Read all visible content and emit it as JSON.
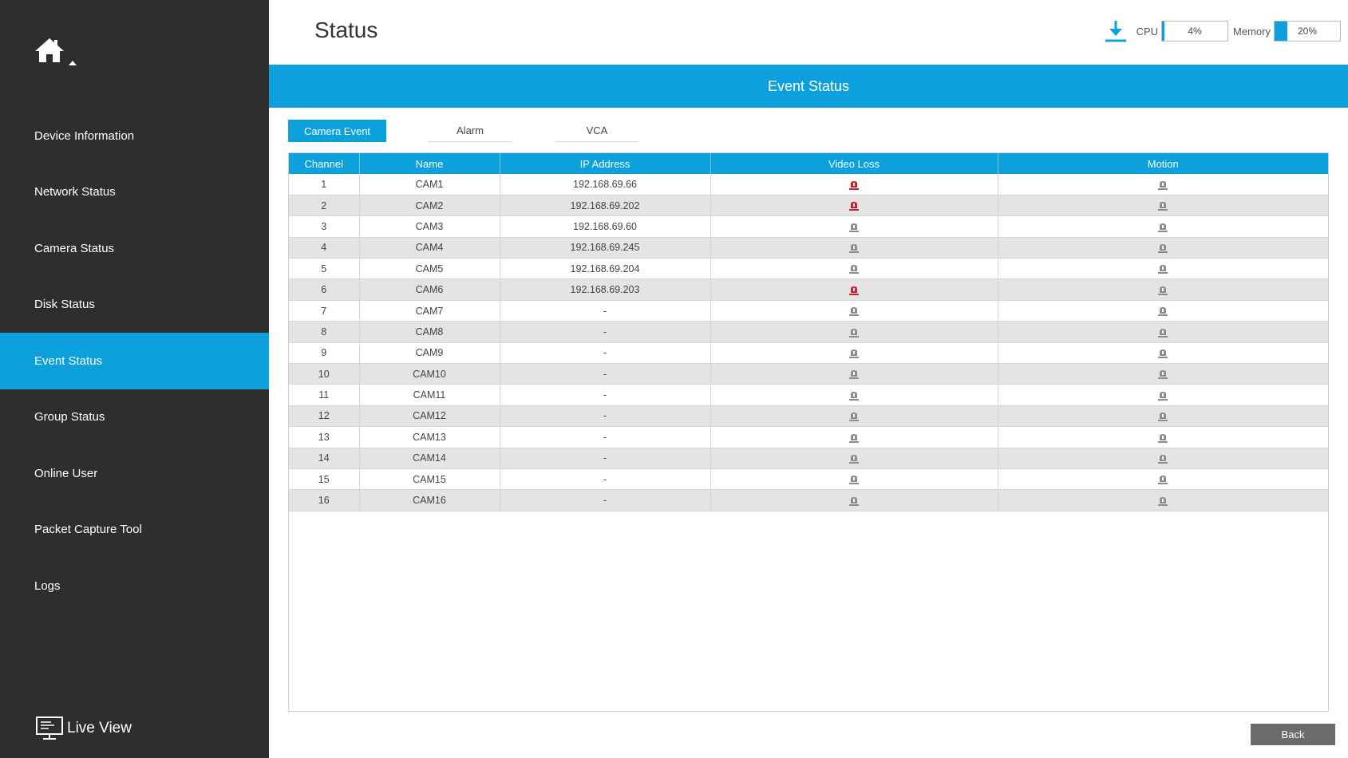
{
  "header": {
    "title": "Status",
    "cpu_label": "CPU",
    "cpu_value": "4%",
    "cpu_percent": 4,
    "memory_label": "Memory",
    "memory_value": "20%",
    "memory_percent": 20
  },
  "sidebar": {
    "items": [
      {
        "label": "Device Information"
      },
      {
        "label": "Network Status"
      },
      {
        "label": "Camera Status"
      },
      {
        "label": "Disk Status"
      },
      {
        "label": "Event Status"
      },
      {
        "label": "Group Status"
      },
      {
        "label": "Online User"
      },
      {
        "label": "Packet Capture Tool"
      },
      {
        "label": "Logs"
      }
    ],
    "active_index": 4,
    "live_view_label": "Live View"
  },
  "section": {
    "title": "Event Status"
  },
  "tabs": [
    {
      "label": "Camera Event"
    },
    {
      "label": "Alarm"
    },
    {
      "label": "VCA"
    }
  ],
  "table": {
    "columns": [
      "Channel",
      "Name",
      "IP Address",
      "Video Loss",
      "Motion"
    ],
    "rows": [
      {
        "channel": "1",
        "name": "CAM1",
        "ip": "192.168.69.66",
        "video_loss": "alarm",
        "motion": "normal"
      },
      {
        "channel": "2",
        "name": "CAM2",
        "ip": "192.168.69.202",
        "video_loss": "alarm",
        "motion": "normal"
      },
      {
        "channel": "3",
        "name": "CAM3",
        "ip": "192.168.69.60",
        "video_loss": "normal",
        "motion": "normal"
      },
      {
        "channel": "4",
        "name": "CAM4",
        "ip": "192.168.69.245",
        "video_loss": "normal",
        "motion": "normal"
      },
      {
        "channel": "5",
        "name": "CAM5",
        "ip": "192.168.69.204",
        "video_loss": "normal",
        "motion": "normal"
      },
      {
        "channel": "6",
        "name": "CAM6",
        "ip": "192.168.69.203",
        "video_loss": "alarm",
        "motion": "normal"
      },
      {
        "channel": "7",
        "name": "CAM7",
        "ip": "-",
        "video_loss": "normal",
        "motion": "normal"
      },
      {
        "channel": "8",
        "name": "CAM8",
        "ip": "-",
        "video_loss": "normal",
        "motion": "normal"
      },
      {
        "channel": "9",
        "name": "CAM9",
        "ip": "-",
        "video_loss": "normal",
        "motion": "normal"
      },
      {
        "channel": "10",
        "name": "CAM10",
        "ip": "-",
        "video_loss": "normal",
        "motion": "normal"
      },
      {
        "channel": "11",
        "name": "CAM11",
        "ip": "-",
        "video_loss": "normal",
        "motion": "normal"
      },
      {
        "channel": "12",
        "name": "CAM12",
        "ip": "-",
        "video_loss": "normal",
        "motion": "normal"
      },
      {
        "channel": "13",
        "name": "CAM13",
        "ip": "-",
        "video_loss": "normal",
        "motion": "normal"
      },
      {
        "channel": "14",
        "name": "CAM14",
        "ip": "-",
        "video_loss": "normal",
        "motion": "normal"
      },
      {
        "channel": "15",
        "name": "CAM15",
        "ip": "-",
        "video_loss": "normal",
        "motion": "normal"
      },
      {
        "channel": "16",
        "name": "CAM16",
        "ip": "-",
        "video_loss": "normal",
        "motion": "normal"
      }
    ]
  },
  "footer": {
    "back_label": "Back"
  },
  "colors": {
    "accent": "#0ca0dc",
    "sidebar_bg": "#2e2e2e",
    "alarm_icon": "#c8232c",
    "normal_icon": "#8c8c8c"
  },
  "icons": {
    "home": "home-icon",
    "download": "download-icon",
    "live_view": "monitor-icon",
    "status": "alarm-lamp-icon"
  }
}
